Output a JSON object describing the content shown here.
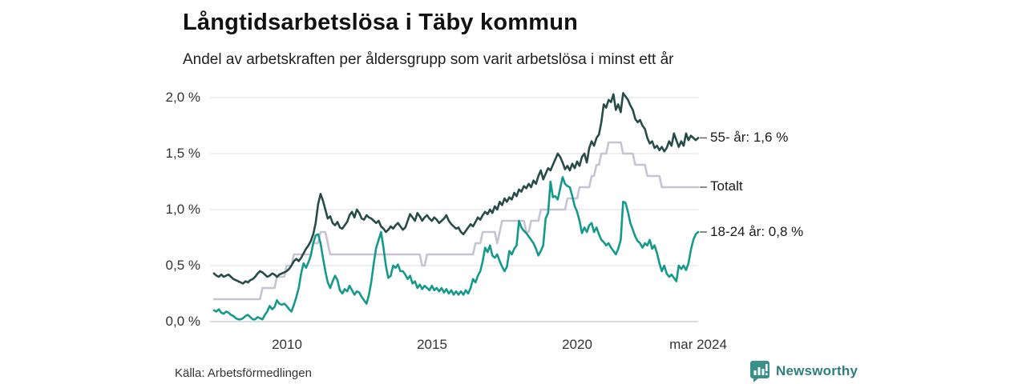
{
  "header": {
    "title": "Långtidsarbetslösa i Täby kommun",
    "subtitle": "Andel av arbetskraften per åldersgrupp som varit arbetslösa i minst ett år"
  },
  "source": {
    "label": "Källa: Arbetsförmedlingen"
  },
  "branding": {
    "name": "Newsworthy",
    "icon": "bar-chart-speech-bubble-icon",
    "text_color": "#2d7f7e",
    "icon_color": "#3a8f8a"
  },
  "chart_data": {
    "type": "line",
    "title": "Långtidsarbetslösa i Täby kommun",
    "subtitle": "Andel av arbetskraften per åldersgrupp som varit arbetslösa i minst ett år",
    "unit": "percent of workforce",
    "frequency": "monthly",
    "x_start": "2007-07",
    "x_end": "2024-03",
    "grid": "horizontal",
    "legend_position": "right-end-labels",
    "ylim": [
      0,
      2.05
    ],
    "y_tick_values": [
      0,
      0.5,
      1.0,
      1.5,
      2.0
    ],
    "y_tick_labels": [
      "0,0 %",
      "0,5 %",
      "1,0 %",
      "1,5 %",
      "2,0 %"
    ],
    "x_tick_indices": [
      30,
      90,
      150,
      200
    ],
    "x_tick_labels": [
      "2010",
      "2015",
      "2020",
      "mar 2024"
    ],
    "grid_color": "#e4e4ec",
    "zero_line_color": "#cfcfd8",
    "tick_dash_color": "#666666",
    "series": [
      {
        "name": "Totalt",
        "end_label": "Totalt",
        "color": "#c6c3d3",
        "values": [
          0.2,
          0.2,
          0.2,
          0.2,
          0.2,
          0.2,
          0.2,
          0.2,
          0.2,
          0.2,
          0.2,
          0.2,
          0.2,
          0.2,
          0.2,
          0.2,
          0.2,
          0.2,
          0.2,
          0.2,
          0.3,
          0.3,
          0.3,
          0.3,
          0.3,
          0.3,
          0.4,
          0.4,
          0.4,
          0.4,
          0.5,
          0.5,
          0.5,
          0.6,
          0.6,
          0.6,
          0.6,
          0.6,
          0.6,
          0.6,
          0.6,
          0.7,
          0.7,
          0.7,
          0.8,
          0.8,
          0.8,
          0.7,
          0.6,
          0.6,
          0.6,
          0.6,
          0.6,
          0.6,
          0.6,
          0.6,
          0.6,
          0.6,
          0.6,
          0.6,
          0.6,
          0.6,
          0.6,
          0.6,
          0.6,
          0.6,
          0.6,
          0.6,
          0.6,
          0.6,
          0.6,
          0.6,
          0.6,
          0.6,
          0.6,
          0.6,
          0.6,
          0.6,
          0.6,
          0.6,
          0.6,
          0.6,
          0.6,
          0.6,
          0.6,
          0.6,
          0.5,
          0.5,
          0.6,
          0.6,
          0.6,
          0.6,
          0.6,
          0.6,
          0.6,
          0.6,
          0.6,
          0.6,
          0.6,
          0.6,
          0.6,
          0.6,
          0.6,
          0.6,
          0.6,
          0.6,
          0.6,
          0.6,
          0.7,
          0.7,
          0.7,
          0.8,
          0.8,
          0.8,
          0.8,
          0.8,
          0.8,
          0.7,
          0.8,
          0.9,
          0.9,
          0.9,
          0.9,
          0.9,
          0.9,
          0.9,
          0.9,
          0.9,
          0.9,
          0.8,
          0.8,
          0.9,
          0.9,
          0.9,
          0.9,
          1.0,
          1.0,
          1.0,
          1.0,
          1.0,
          1.0,
          1.0,
          1.0,
          1.0,
          1.0,
          1.0,
          1.1,
          1.1,
          1.1,
          1.1,
          1.1,
          1.2,
          1.2,
          1.2,
          1.2,
          1.2,
          1.3,
          1.3,
          1.4,
          1.4,
          1.5,
          1.5,
          1.5,
          1.6,
          1.6,
          1.6,
          1.6,
          1.6,
          1.6,
          1.5,
          1.5,
          1.5,
          1.5,
          1.5,
          1.4,
          1.4,
          1.4,
          1.4,
          1.4,
          1.3,
          1.3,
          1.3,
          1.3,
          1.3,
          1.3,
          1.2,
          1.2,
          1.2,
          1.2,
          1.2,
          1.2,
          1.2,
          1.2,
          1.2,
          1.2,
          1.2,
          1.2,
          1.2,
          1.2,
          1.2,
          1.2
        ]
      },
      {
        "name": "55- år",
        "end_label": "55- år: 1,6 %",
        "color": "#274b46",
        "values": [
          0.43,
          0.41,
          0.4,
          0.42,
          0.4,
          0.41,
          0.42,
          0.4,
          0.38,
          0.37,
          0.36,
          0.35,
          0.34,
          0.36,
          0.35,
          0.37,
          0.38,
          0.4,
          0.43,
          0.45,
          0.44,
          0.42,
          0.4,
          0.41,
          0.43,
          0.42,
          0.4,
          0.42,
          0.43,
          0.44,
          0.45,
          0.47,
          0.5,
          0.54,
          0.56,
          0.54,
          0.57,
          0.61,
          0.65,
          0.68,
          0.72,
          0.78,
          0.88,
          1.05,
          1.14,
          1.08,
          1.0,
          0.92,
          0.94,
          0.88,
          0.86,
          0.89,
          0.84,
          0.83,
          0.86,
          0.89,
          0.95,
          0.98,
          0.93,
          1.0,
          0.97,
          0.92,
          0.91,
          0.95,
          0.93,
          0.92,
          0.9,
          0.88,
          0.9,
          0.85,
          0.83,
          0.8,
          0.82,
          0.85,
          0.83,
          0.86,
          0.88,
          0.85,
          0.82,
          0.84,
          0.9,
          0.96,
          0.93,
          0.9,
          0.97,
          0.94,
          0.9,
          0.93,
          0.95,
          0.92,
          0.9,
          0.93,
          0.91,
          0.88,
          0.9,
          0.92,
          0.95,
          0.9,
          0.87,
          0.85,
          0.83,
          0.84,
          0.8,
          0.78,
          0.81,
          0.84,
          0.87,
          0.85,
          0.89,
          0.93,
          0.91,
          0.95,
          0.98,
          0.96,
          1.0,
          0.97,
          1.03,
          1.0,
          1.07,
          1.04,
          1.1,
          1.07,
          1.11,
          1.09,
          1.15,
          1.12,
          1.18,
          1.16,
          1.21,
          1.19,
          1.23,
          1.2,
          1.26,
          1.23,
          1.3,
          1.35,
          1.27,
          1.32,
          1.37,
          1.35,
          1.4,
          1.45,
          1.5,
          1.47,
          1.42,
          1.36,
          1.39,
          1.35,
          1.41,
          1.37,
          1.43,
          1.39,
          1.47,
          1.5,
          1.42,
          1.55,
          1.61,
          1.57,
          1.64,
          1.67,
          1.78,
          1.94,
          1.91,
          1.98,
          1.96,
          2.03,
          1.89,
          1.94,
          1.87,
          2.04,
          2.01,
          1.98,
          1.93,
          1.89,
          1.81,
          1.78,
          1.8,
          1.75,
          1.72,
          1.64,
          1.59,
          1.61,
          1.55,
          1.57,
          1.53,
          1.56,
          1.52,
          1.55,
          1.61,
          1.57,
          1.68,
          1.62,
          1.56,
          1.61,
          1.57,
          1.68,
          1.62,
          1.66,
          1.64,
          1.62,
          1.64
        ]
      },
      {
        "name": "18-24 år",
        "end_label": "18-24 år: 0,8 %",
        "color": "#14998b",
        "values": [
          0.1,
          0.09,
          0.11,
          0.08,
          0.07,
          0.09,
          0.08,
          0.06,
          0.05,
          0.03,
          0.02,
          0.02,
          0.03,
          0.05,
          0.06,
          0.04,
          0.02,
          0.02,
          0.04,
          0.03,
          0.02,
          0.06,
          0.09,
          0.14,
          0.11,
          0.13,
          0.19,
          0.16,
          0.15,
          0.16,
          0.14,
          0.11,
          0.09,
          0.15,
          0.22,
          0.3,
          0.43,
          0.52,
          0.48,
          0.53,
          0.59,
          0.7,
          0.77,
          0.78,
          0.7,
          0.57,
          0.45,
          0.35,
          0.3,
          0.36,
          0.41,
          0.37,
          0.28,
          0.25,
          0.29,
          0.27,
          0.32,
          0.28,
          0.24,
          0.27,
          0.26,
          0.22,
          0.19,
          0.16,
          0.24,
          0.36,
          0.52,
          0.66,
          0.73,
          0.8,
          0.66,
          0.5,
          0.39,
          0.41,
          0.5,
          0.48,
          0.51,
          0.45,
          0.45,
          0.42,
          0.38,
          0.41,
          0.34,
          0.36,
          0.3,
          0.33,
          0.29,
          0.32,
          0.3,
          0.28,
          0.32,
          0.28,
          0.3,
          0.27,
          0.3,
          0.26,
          0.29,
          0.25,
          0.28,
          0.24,
          0.27,
          0.24,
          0.27,
          0.24,
          0.28,
          0.25,
          0.3,
          0.38,
          0.35,
          0.41,
          0.45,
          0.54,
          0.66,
          0.62,
          0.68,
          0.59,
          0.57,
          0.6,
          0.54,
          0.49,
          0.45,
          0.49,
          0.63,
          0.6,
          0.65,
          0.68,
          0.9,
          0.84,
          0.81,
          0.79,
          0.76,
          0.73,
          0.7,
          0.65,
          0.59,
          0.63,
          0.68,
          0.92,
          0.97,
          1.25,
          1.11,
          1.12,
          1.09,
          1.19,
          1.29,
          1.23,
          1.21,
          1.2,
          1.12,
          1.03,
          0.98,
          0.9,
          0.79,
          0.84,
          0.8,
          0.86,
          0.88,
          0.8,
          0.84,
          0.78,
          0.73,
          0.71,
          0.68,
          0.7,
          0.66,
          0.63,
          0.6,
          0.65,
          0.73,
          1.07,
          1.06,
          0.98,
          0.88,
          0.82,
          0.76,
          0.72,
          0.7,
          0.66,
          0.7,
          0.68,
          0.73,
          0.65,
          0.68,
          0.61,
          0.52,
          0.45,
          0.5,
          0.43,
          0.4,
          0.42,
          0.39,
          0.36,
          0.5,
          0.47,
          0.5,
          0.46,
          0.52,
          0.64,
          0.73,
          0.78,
          0.8
        ]
      }
    ]
  }
}
